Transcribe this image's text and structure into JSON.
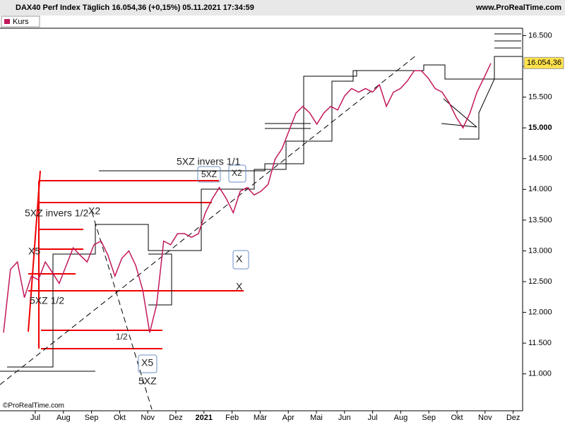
{
  "header": {
    "title": "DAX40 Perf Index Täglich 16.054,36 (+0,15%) 05.11.2021 17:34:59",
    "site": "www.ProRealTime.com",
    "legend": "Kurs",
    "copyright": "©ProRealTime.com"
  },
  "chart_data": {
    "type": "line",
    "title": "DAX40 Perf Index Täglich",
    "color": "#c2185b",
    "values": [
      11670,
      12700,
      12820,
      12240,
      12590,
      12530,
      12820,
      12650,
      12470,
      12760,
      13050,
      12930,
      12820,
      13100,
      13160,
      12930,
      12590,
      12880,
      13000,
      12760,
      12360,
      11670,
      12130,
      13160,
      13100,
      13280,
      13280,
      13220,
      13280,
      13620,
      13850,
      14030,
      13850,
      13620,
      13970,
      14030,
      13910,
      13970,
      14080,
      14490,
      14660,
      14950,
      15240,
      15350,
      15240,
      15060,
      15240,
      15350,
      15290,
      15520,
      15640,
      15580,
      15640,
      15580,
      15700,
      15350,
      15580,
      15640,
      15760,
      15930,
      15930,
      15810,
      15640,
      15580,
      15410,
      15180,
      15000,
      15240,
      15580,
      15810,
      16050
    ],
    "xticks": [
      "Jul",
      "Aug",
      "Sep",
      "Okt",
      "Nov",
      "Dez",
      "2021",
      "Feb",
      "Mär",
      "Apr",
      "Mai",
      "Jun",
      "Jul",
      "Aug",
      "Sep",
      "Okt",
      "Nov",
      "Dez"
    ],
    "ylim": [
      10400,
      16620
    ],
    "yticks": [
      {
        "value": 11000,
        "label": "11.000"
      },
      {
        "value": 11500,
        "label": "11.500"
      },
      {
        "value": 12000,
        "label": "12.000"
      },
      {
        "value": 12500,
        "label": "12.500"
      },
      {
        "value": 13000,
        "label": "13.000"
      },
      {
        "value": 13500,
        "label": "13.500"
      },
      {
        "value": 14000,
        "label": "14.000"
      },
      {
        "value": 14500,
        "label": "14.500"
      },
      {
        "value": 15000,
        "label": "15.000"
      },
      {
        "value": 15500,
        "label": "15.500"
      },
      {
        "value": 16000,
        "label": "16.000"
      },
      {
        "value": 16500,
        "label": "16.500"
      }
    ],
    "last_price": 16054.36,
    "last_price_label": "16.054,36",
    "annotations": [
      "5XZ invers 1/1",
      "5XZ invers 1/2",
      "5XZ",
      "X2",
      "X2",
      "X5",
      "5XZ 1/2",
      "X",
      "X",
      "1/2",
      "X5",
      "5XZ"
    ]
  }
}
